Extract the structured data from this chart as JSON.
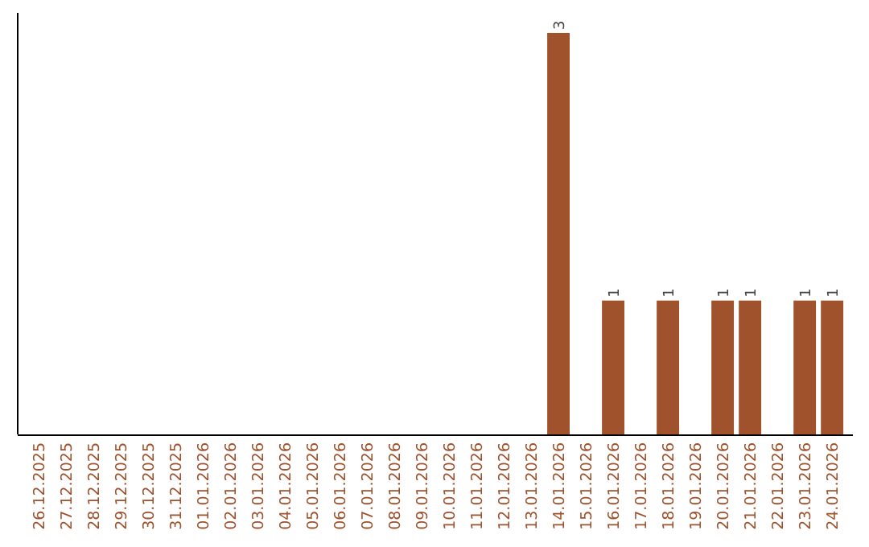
{
  "chart_data": {
    "type": "bar",
    "categories": [
      "26.12.2025",
      "27.12.2025",
      "28.12.2025",
      "29.12.2025",
      "30.12.2025",
      "31.12.2025",
      "01.01.2026",
      "02.01.2026",
      "03.01.2026",
      "04.01.2026",
      "05.01.2026",
      "06.01.2026",
      "07.01.2026",
      "08.01.2026",
      "09.01.2026",
      "10.01.2026",
      "11.01.2026",
      "12.01.2026",
      "13.01.2026",
      "14.01.2026",
      "15.01.2026",
      "16.01.2026",
      "17.01.2026",
      "18.01.2026",
      "19.01.2026",
      "20.01.2026",
      "21.01.2026",
      "22.01.2026",
      "23.01.2026",
      "24.01.2026"
    ],
    "values": [
      null,
      null,
      null,
      null,
      null,
      null,
      null,
      null,
      null,
      null,
      null,
      null,
      null,
      null,
      null,
      null,
      null,
      null,
      null,
      3,
      null,
      1,
      null,
      1,
      null,
      1,
      1,
      null,
      1,
      1
    ],
    "value_labels": [
      null,
      null,
      null,
      null,
      null,
      null,
      null,
      null,
      null,
      null,
      null,
      null,
      null,
      null,
      null,
      null,
      null,
      null,
      null,
      "3",
      null,
      "1",
      null,
      "1",
      null,
      "1",
      "1",
      null,
      "1",
      "1"
    ],
    "color": "#a0522d",
    "ylim": [
      0,
      3.15
    ],
    "tick_labels": "x"
  }
}
